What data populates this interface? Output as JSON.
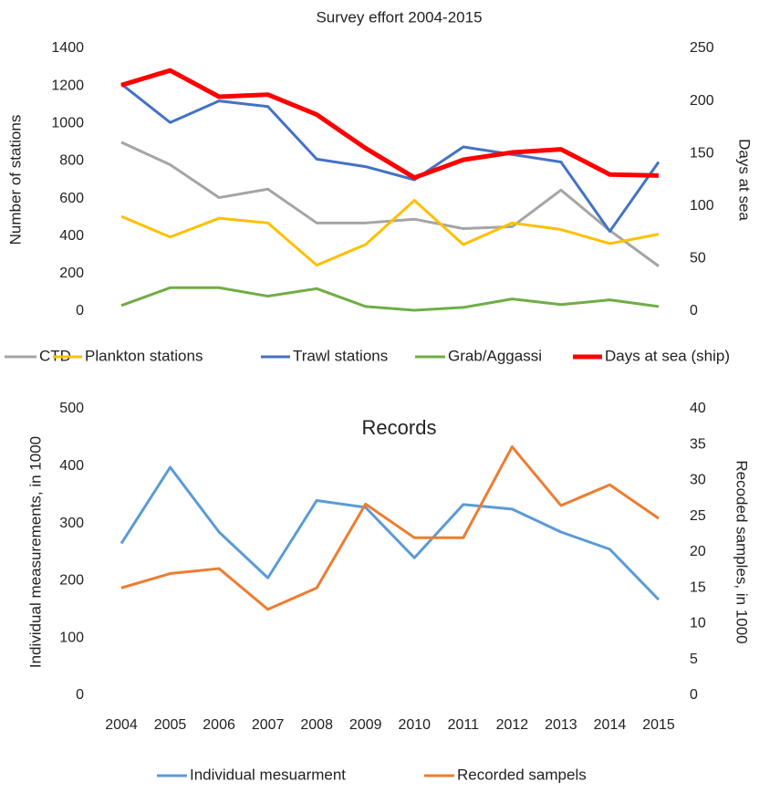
{
  "chart_data": [
    {
      "type": "line",
      "title": "Survey effort 2004-2015",
      "ylabel": "Number of stations",
      "y2label": "Days at sea",
      "ylim": [
        0,
        1400
      ],
      "yticks": [
        0,
        200,
        400,
        600,
        800,
        1000,
        1200,
        1400
      ],
      "y2lim": [
        0,
        250
      ],
      "y2ticks": [
        0,
        50,
        100,
        150,
        200,
        250
      ],
      "series": [
        {
          "name": "CTD",
          "color": "#a5a5a5",
          "linewidth": 3,
          "values": [
            900,
            780,
            605,
            650,
            470,
            470,
            490,
            440,
            450,
            645,
            430,
            240
          ]
        },
        {
          "name": "Plankton stations",
          "color": "#ffc000",
          "linewidth": 3,
          "values": [
            505,
            395,
            495,
            470,
            245,
            355,
            590,
            355,
            470,
            435,
            360,
            410
          ]
        },
        {
          "name": "Trawl stations",
          "color": "#4472c4",
          "linewidth": 3,
          "values": [
            1210,
            1005,
            1120,
            1090,
            810,
            770,
            700,
            875,
            835,
            795,
            425,
            795
          ]
        },
        {
          "name": "Grab/Aggassi",
          "color": "#70ad47",
          "linewidth": 3,
          "values": [
            30,
            125,
            125,
            80,
            120,
            25,
            5,
            20,
            65,
            35,
            60,
            25
          ]
        },
        {
          "name": "Days at sea (ship)",
          "color": "#ff0000",
          "linewidth": 5,
          "axis": "y2",
          "values": [
            215,
            229,
            204,
            206,
            187,
            155,
            127,
            144,
            151,
            154,
            130,
            129
          ]
        }
      ]
    },
    {
      "type": "line",
      "title": "Records",
      "ylabel": "Individual measurements, in 1000",
      "y2label": "Recoded samples, in 1000",
      "categories": [
        "2004",
        "2005",
        "2006",
        "2007",
        "2008",
        "2009",
        "2010",
        "2011",
        "2012",
        "2013",
        "2014",
        "2015"
      ],
      "ylim": [
        0,
        500
      ],
      "yticks": [
        0,
        100,
        200,
        300,
        400,
        500
      ],
      "y2lim": [
        0,
        40
      ],
      "y2ticks": [
        0,
        5,
        10,
        15,
        20,
        25,
        30,
        35,
        40
      ],
      "series": [
        {
          "name": "Individual mesuarment",
          "color": "#5b9bd5",
          "linewidth": 3,
          "values": [
            265,
            398,
            285,
            205,
            340,
            328,
            240,
            333,
            325,
            285,
            255,
            167
          ]
        },
        {
          "name": "Recorded sampels",
          "color": "#ed7d31",
          "linewidth": 3,
          "axis": "y2",
          "values": [
            15,
            17,
            17.7,
            12,
            15,
            26.7,
            22,
            22,
            34.7,
            26.5,
            29.4,
            24.7
          ]
        }
      ]
    }
  ]
}
